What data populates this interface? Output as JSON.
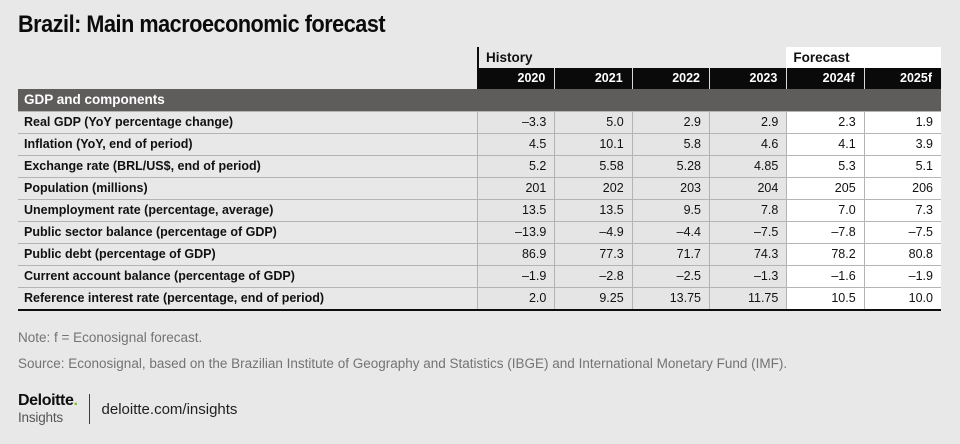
{
  "title": "Brazil: Main macroeconomic forecast",
  "table": {
    "history_label": "History",
    "forecast_label": "Forecast",
    "years": [
      "2020",
      "2021",
      "2022",
      "2023",
      "2024f",
      "2025f"
    ],
    "section_header": "GDP and components",
    "rows": [
      {
        "label": "Real GDP (YoY percentage change)",
        "values": [
          "–3.3",
          "5.0",
          "2.9",
          "2.9",
          "2.3",
          "1.9"
        ]
      },
      {
        "label": "Inflation (YoY, end of period)",
        "values": [
          "4.5",
          "10.1",
          "5.8",
          "4.6",
          "4.1",
          "3.9"
        ]
      },
      {
        "label": "Exchange rate (BRL/US$, end of period)",
        "values": [
          "5.2",
          "5.58",
          "5.28",
          "4.85",
          "5.3",
          "5.1"
        ]
      },
      {
        "label": "Population (millions)",
        "values": [
          "201",
          "202",
          "203",
          "204",
          "205",
          "206"
        ]
      },
      {
        "label": "Unemployment rate (percentage, average)",
        "values": [
          "13.5",
          "13.5",
          "9.5",
          "7.8",
          "7.0",
          "7.3"
        ]
      },
      {
        "label": "Public sector balance (percentage of GDP)",
        "values": [
          "–13.9",
          "–4.9",
          "–4.4",
          "–7.5",
          "–7.8",
          "–7.5"
        ]
      },
      {
        "label": "Public debt (percentage of GDP)",
        "values": [
          "86.9",
          "77.3",
          "71.7",
          "74.3",
          "78.2",
          "80.8"
        ]
      },
      {
        "label": "Current account balance (percentage of GDP)",
        "values": [
          "–1.9",
          "–2.8",
          "–2.5",
          "–1.3",
          "–1.6",
          "–1.9"
        ]
      },
      {
        "label": "Reference interest rate (percentage, end of period)",
        "values": [
          "2.0",
          "9.25",
          "13.75",
          "11.75",
          "10.5",
          "10.0"
        ]
      }
    ]
  },
  "chart_data": {
    "type": "table",
    "title": "Brazil: Main macroeconomic forecast",
    "column_groups": [
      {
        "label": "History",
        "span": 4
      },
      {
        "label": "Forecast",
        "span": 2
      }
    ],
    "columns": [
      "2020",
      "2021",
      "2022",
      "2023",
      "2024f",
      "2025f"
    ],
    "section": "GDP and components",
    "rows": [
      {
        "label": "Real GDP (YoY percentage change)",
        "values": [
          -3.3,
          5.0,
          2.9,
          2.9,
          2.3,
          1.9
        ]
      },
      {
        "label": "Inflation (YoY, end of period)",
        "values": [
          4.5,
          10.1,
          5.8,
          4.6,
          4.1,
          3.9
        ]
      },
      {
        "label": "Exchange rate (BRL/US$, end of period)",
        "values": [
          5.2,
          5.58,
          5.28,
          4.85,
          5.3,
          5.1
        ]
      },
      {
        "label": "Population (millions)",
        "values": [
          201,
          202,
          203,
          204,
          205,
          206
        ]
      },
      {
        "label": "Unemployment rate (percentage, average)",
        "values": [
          13.5,
          13.5,
          9.5,
          7.8,
          7.0,
          7.3
        ]
      },
      {
        "label": "Public sector balance (percentage of GDP)",
        "values": [
          -13.9,
          -4.9,
          -4.4,
          -7.5,
          -7.8,
          -7.5
        ]
      },
      {
        "label": "Public debt (percentage of GDP)",
        "values": [
          86.9,
          77.3,
          71.7,
          74.3,
          78.2,
          80.8
        ]
      },
      {
        "label": "Current account balance (percentage of GDP)",
        "values": [
          -1.9,
          -2.8,
          -2.5,
          -1.3,
          -1.6,
          -1.9
        ]
      },
      {
        "label": "Reference interest rate (percentage, end of period)",
        "values": [
          2.0,
          9.25,
          13.75,
          11.75,
          10.5,
          10.0
        ]
      }
    ]
  },
  "notes": {
    "note": "Note: f = Econosignal forecast.",
    "source": "Source: Econosignal, based on the Brazilian Institute of Geography and Statistics (IBGE) and International Monetary Fund (IMF)."
  },
  "footer": {
    "logo_name": "Deloitte",
    "logo_dot": ".",
    "logo_sub": "Insights",
    "url": "deloitte.com/insights"
  },
  "colors": {
    "page_bg": "#e8e8e8",
    "band_black": "#0a0a0a",
    "section_gray": "#5f5c5c",
    "history_cell_bg": "#e5e5e5",
    "forecast_cell_bg": "#ffffff",
    "deloitte_green": "#86bc25",
    "muted_text": "#737373"
  }
}
